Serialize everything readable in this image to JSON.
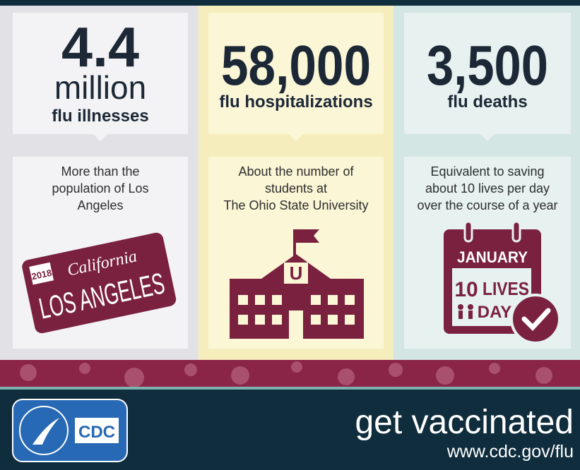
{
  "columns": [
    {
      "number": "4.4",
      "unit": "million",
      "label": "flu illnesses",
      "description": [
        "More than the",
        "population of Los",
        "Angeles"
      ],
      "icon": {
        "year": "2018",
        "state": "California",
        "city": "LOS ANGELES"
      }
    },
    {
      "number": "58,000",
      "label": "flu hospitalizations",
      "description": [
        "About the number of",
        "students at",
        "The Ohio State University"
      ],
      "icon": {
        "emblem": "U"
      }
    },
    {
      "number": "3,500",
      "label": "flu deaths",
      "description": [
        "Equivalent to saving",
        "about 10 lives per day",
        "over the course of a year"
      ],
      "icon": {
        "month": "JANUARY",
        "count": "10",
        "word": "LIVES",
        "per": "DAY"
      }
    }
  ],
  "footer": {
    "logo": "CDC",
    "tagline": "get vaccinated",
    "url": "www.cdc.gov/flu"
  }
}
